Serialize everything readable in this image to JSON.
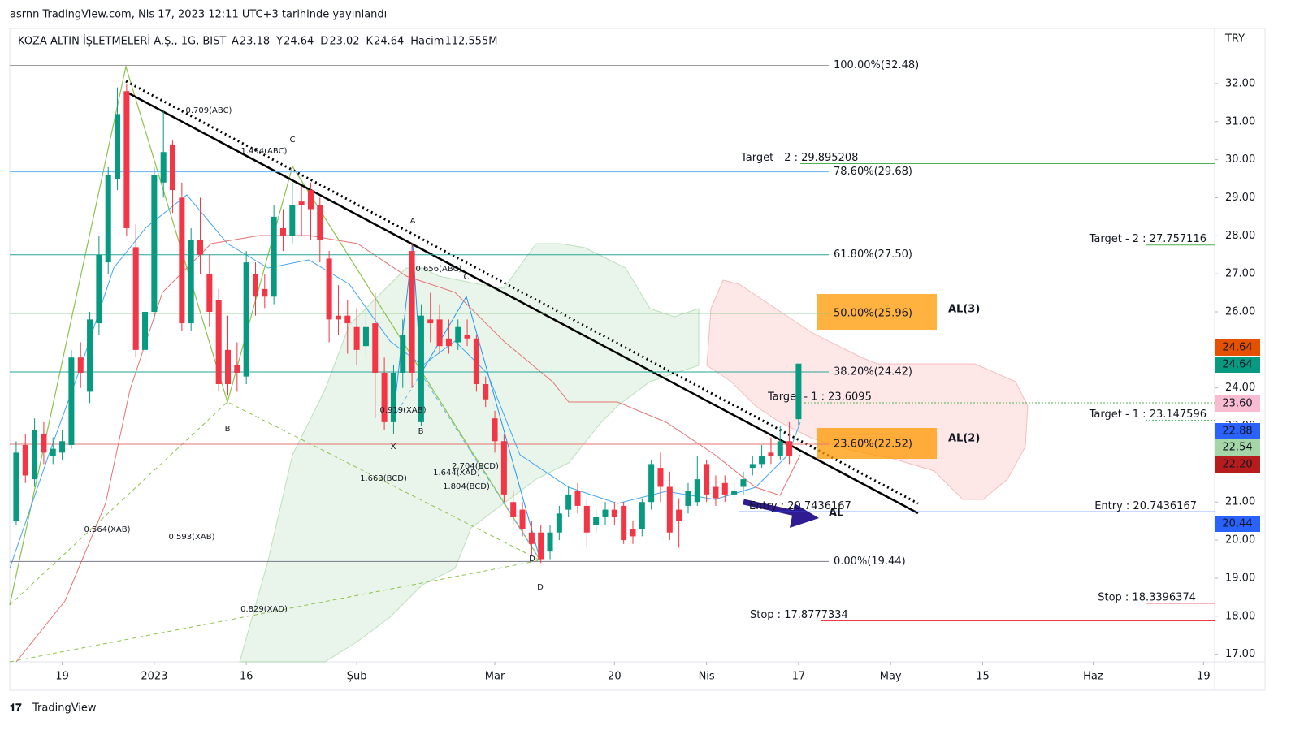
{
  "header": {
    "published": "asrnn TradingView.com, Nis 17, 2023 12:11 UTC+3 tarihinde yayınlandı",
    "brand": "TradingView"
  },
  "chart_data": {
    "type": "candlestick",
    "title": "KOZA ALTIN İŞLETMELERİ A.Ş., 1G, BIST",
    "ohlc_legend": [
      {
        "label": "A",
        "value": 23.18
      },
      {
        "label": "Y",
        "value": 24.64
      },
      {
        "label": "D",
        "value": 23.02
      },
      {
        "label": "K",
        "value": 24.64
      },
      {
        "label": "Hacim",
        "value": 112555000,
        "value_label": "112.555M"
      }
    ],
    "currency": "TRY",
    "up_color": "#089981",
    "down_color": "#f23645",
    "open": [
      20.5,
      22.5,
      21.6,
      22.8,
      22.2,
      22.3,
      22.5,
      24.8,
      23.9,
      25.7,
      27.3,
      29.5,
      31.8,
      27.7,
      25.0,
      26.0,
      29.4,
      30.4,
      29.0,
      25.7,
      27.9,
      27.0,
      26.3,
      25.0,
      24.6,
      24.3,
      27.0,
      26.6,
      26.4,
      28.2,
      28.0,
      28.9,
      29.2,
      28.8,
      27.4,
      25.9,
      25.9,
      25.6,
      25.1,
      25.7,
      24.4,
      23.1,
      24.4,
      27.6,
      23.1,
      25.8,
      25.8,
      25.3,
      25.2,
      25.4,
      25.3,
      24.1,
      23.2,
      22.6,
      21.0,
      20.8,
      20.2,
      20.2,
      19.7,
      20.2,
      20.8,
      21.3,
      20.9,
      20.4,
      20.6,
      20.8,
      20.9,
      20.3,
      20.3,
      21.0,
      21.9,
      21.4,
      20.8,
      20.9,
      21.0,
      22.0,
      21.4,
      21.5,
      21.2,
      21.4,
      21.9,
      22.0,
      22.3,
      22.2,
      22.6,
      23.18
    ],
    "high": [
      22.6,
      22.8,
      23.2,
      23.1,
      22.7,
      22.9,
      25.0,
      25.2,
      26.0,
      28.0,
      29.8,
      31.9,
      32.0,
      28.3,
      26.3,
      29.8,
      31.3,
      30.5,
      29.4,
      28.2,
      29.0,
      27.5,
      26.6,
      25.9,
      25.2,
      27.6,
      27.3,
      27.0,
      28.8,
      28.7,
      29.4,
      29.3,
      29.4,
      29.0,
      27.6,
      26.7,
      26.3,
      26.1,
      26.2,
      26.5,
      24.8,
      24.6,
      25.8,
      27.8,
      26.2,
      26.5,
      26.2,
      25.8,
      25.8,
      25.8,
      25.4,
      24.3,
      23.4,
      22.8,
      21.3,
      21.0,
      20.5,
      20.4,
      20.4,
      20.9,
      21.4,
      21.5,
      21.1,
      20.8,
      21.0,
      21.0,
      21.0,
      20.5,
      21.1,
      22.1,
      22.3,
      21.8,
      21.1,
      21.5,
      22.2,
      22.1,
      21.7,
      21.7,
      21.5,
      21.8,
      22.2,
      22.5,
      22.7,
      23.0,
      23.1,
      24.64
    ],
    "low": [
      20.4,
      21.5,
      21.4,
      22.0,
      22.0,
      22.1,
      22.4,
      24.0,
      23.6,
      25.4,
      27.0,
      29.2,
      28.0,
      24.8,
      24.6,
      25.8,
      29.0,
      28.6,
      25.5,
      25.5,
      27.0,
      25.6,
      23.9,
      23.8,
      23.9,
      24.1,
      25.9,
      26.1,
      26.2,
      27.6,
      27.8,
      28.0,
      27.9,
      27.3,
      25.2,
      25.4,
      24.9,
      24.6,
      24.8,
      23.2,
      22.9,
      22.8,
      24.0,
      24.0,
      23.0,
      25.2,
      24.9,
      24.9,
      25.0,
      25.1,
      23.9,
      23.5,
      22.3,
      21.0,
      20.4,
      20.1,
      19.6,
      19.4,
      19.5,
      20.0,
      20.6,
      20.7,
      19.8,
      20.2,
      20.4,
      20.4,
      19.9,
      19.9,
      20.1,
      20.8,
      21.0,
      20.0,
      19.8,
      20.7,
      20.9,
      21.0,
      20.9,
      21.0,
      21.1,
      21.2,
      21.7,
      21.9,
      22.0,
      22.1,
      22.0,
      23.02
    ],
    "close": [
      22.3,
      21.7,
      22.9,
      22.3,
      22.4,
      22.6,
      24.8,
      24.4,
      25.8,
      27.5,
      29.6,
      31.2,
      28.2,
      25.0,
      26.0,
      29.6,
      30.2,
      29.2,
      25.7,
      27.9,
      27.5,
      26.0,
      24.1,
      24.1,
      24.4,
      27.3,
      26.4,
      26.4,
      28.5,
      28.0,
      28.8,
      28.8,
      28.7,
      27.9,
      25.8,
      25.8,
      25.7,
      25.0,
      25.6,
      24.4,
      23.1,
      24.4,
      25.4,
      24.4,
      25.9,
      25.7,
      25.1,
      25.1,
      25.6,
      25.3,
      24.1,
      23.7,
      22.6,
      21.2,
      20.6,
      20.3,
      19.9,
      19.5,
      20.2,
      20.7,
      21.2,
      20.9,
      20.2,
      20.6,
      20.8,
      20.6,
      20.0,
      20.1,
      21.0,
      22.0,
      21.4,
      20.2,
      20.5,
      21.3,
      21.6,
      21.2,
      21.1,
      21.2,
      21.3,
      21.6,
      22.0,
      22.2,
      22.2,
      22.6,
      22.2,
      24.64
    ],
    "xlim": [
      -0.7,
      130.2
    ],
    "xticks": [
      {
        "value": 5,
        "label": "19"
      },
      {
        "value": 15,
        "label": "2023"
      },
      {
        "value": 25,
        "label": "16"
      },
      {
        "value": 37,
        "label": "Şub"
      },
      {
        "value": 52,
        "label": "Mar"
      },
      {
        "value": 65,
        "label": "20"
      },
      {
        "value": 75,
        "label": "Nis"
      },
      {
        "value": 85,
        "label": "17"
      },
      {
        "value": 95,
        "label": "May"
      },
      {
        "value": 105,
        "label": "15"
      },
      {
        "value": 117,
        "label": "Haz"
      },
      {
        "value": 129,
        "label": "19"
      }
    ],
    "ylim": [
      16.8,
      33.45
    ],
    "yticks": [
      {
        "value": 17,
        "label": "17.00"
      },
      {
        "value": 18,
        "label": "18.00"
      },
      {
        "value": 19,
        "label": "19.00"
      },
      {
        "value": 20,
        "label": "20.00"
      },
      {
        "value": 21,
        "label": "21.00"
      },
      {
        "value": 22,
        "label": "22.00"
      },
      {
        "value": 23,
        "label": "23.00"
      },
      {
        "value": 24,
        "label": "24.00"
      },
      {
        "value": 25,
        "label": "25.00"
      },
      {
        "value": 26,
        "label": "26.00"
      },
      {
        "value": 27,
        "label": "27.00"
      },
      {
        "value": 28,
        "label": "28.00"
      },
      {
        "value": 29,
        "label": "29.00"
      },
      {
        "value": 30,
        "label": "30.00"
      },
      {
        "value": 31,
        "label": "31.00"
      },
      {
        "value": 32,
        "label": "32.00"
      }
    ],
    "fib_levels": [
      {
        "label": "100.00%(32.48)",
        "value": 32.48,
        "color": "#9e9e9e"
      },
      {
        "label": "78.60%(29.68)",
        "value": 29.68,
        "color": "#64b5f6"
      },
      {
        "label": "61.80%(27.50)",
        "value": 27.5,
        "color": "#26a69a"
      },
      {
        "label": "50.00%(25.96)",
        "value": 25.96,
        "color": "#81c784"
      },
      {
        "label": "38.20%(24.42)",
        "value": 24.42,
        "color": "#26a69a"
      },
      {
        "label": "23.60%(22.52)",
        "value": 22.52,
        "color": "#e57373"
      },
      {
        "label": "0.00%(19.44)",
        "value": 19.44,
        "color": "#787b86"
      }
    ],
    "levels": [
      {
        "label": "Target - 2 : 29.895208",
        "value": 29.895208,
        "color": "#8bc34a"
      },
      {
        "label": "Target - 2 : 27.757116",
        "value": 27.757116,
        "color": "#8bc34a"
      },
      {
        "label": "Target - 1 : 23.6095",
        "value": 23.6095,
        "color": "#8bc34a"
      },
      {
        "label": "Target - 1 : 23.147596",
        "value": 23.147596,
        "color": "#8bc34a"
      },
      {
        "label": "Entry : 20.7436167",
        "value": 20.7436167,
        "color": "#8bc34a"
      },
      {
        "label": "Entry : 20.7436167",
        "value": 20.7436167,
        "color": "#8bc34a"
      },
      {
        "label": "Stop : 18.3396374",
        "value": 18.3396374,
        "color": "#8bc34a"
      },
      {
        "label": "Stop : 17.8777334",
        "value": 17.8777334,
        "color": "#8bc34a"
      }
    ],
    "price_tags": [
      {
        "value": 24.64,
        "label": "24.64",
        "color": "#e65100"
      },
      {
        "value": 24.64,
        "label": "24.64",
        "color": "#089981"
      },
      {
        "value": 23.6,
        "label": "23.60",
        "color": "#f8bbd0"
      },
      {
        "value": 22.88,
        "label": "22.88",
        "color": "#2962ff"
      },
      {
        "value": 22.54,
        "label": "22.54",
        "color": "#a5d6a7"
      },
      {
        "value": 22.2,
        "label": "22.20",
        "color": "#b71c1c"
      },
      {
        "value": 20.44,
        "label": "20.44",
        "color": "#2962ff"
      }
    ],
    "signals": [
      "AL(3)",
      "AL(2)",
      "AL"
    ],
    "pattern_labels": [
      "0.709(ABC)",
      "1.494(ABC)",
      "C",
      "B",
      "0.564(XAB)",
      "0.593(XAB)",
      "1.663(BCD)",
      "0.829(XAD)",
      "D",
      "A",
      "0.656(ABC)",
      "C",
      "0.919(XAB)",
      "B",
      "X",
      "2.704(BCD)",
      "1.644(XAD)",
      "1.804(BCD)",
      "D"
    ]
  }
}
